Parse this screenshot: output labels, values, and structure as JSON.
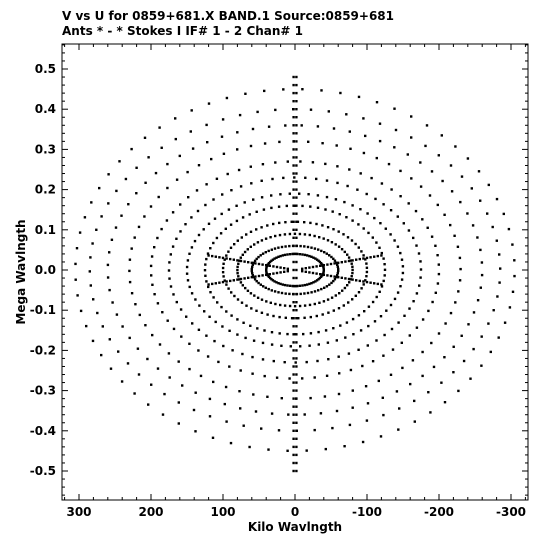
{
  "header": {
    "line1": "V vs U for 0859+681.X BAND.1   Source:0859+681",
    "line2": "Ants * - *     Stokes I  IF# 1 - 2  Chan# 1"
  },
  "colors": {
    "background": "#ffffff",
    "ink": "#000000"
  },
  "chart_data": {
    "type": "scatter",
    "xlabel": "Kilo Wavlngth",
    "ylabel": "Mega Wavlngth",
    "x_units": "kilo-wavelength",
    "y_units": "mega-wavelength",
    "x_axis_reversed": true,
    "xlim": [
      330,
      -330
    ],
    "ylim": [
      -0.57,
      0.57
    ],
    "grid": false,
    "legend": "none",
    "x_ticks": [
      300,
      200,
      100,
      0,
      -100,
      -200,
      -300
    ],
    "x_tick_labels": [
      "300",
      "200",
      "100",
      "0",
      "-100",
      "-200",
      "-300"
    ],
    "y_ticks": [
      0.5,
      0.4,
      0.3,
      0.2,
      0.1,
      0.0,
      -0.1,
      -0.2,
      -0.3,
      -0.4,
      -0.5
    ],
    "y_tick_labels": [
      "0.5",
      "0.4",
      "0.3",
      "0.2",
      "0.1",
      "0.0",
      "-0.1",
      "-0.2",
      "-0.3",
      "-0.4",
      "-0.5"
    ],
    "marker": "small filled square",
    "uv_coverage": {
      "description_of_structure": "concentric elliptical tracks (point-symmetric u,v samples)",
      "track_semi_axes": [
        [
          40,
          0.04
        ],
        [
          60,
          0.06
        ],
        [
          80,
          0.09
        ],
        [
          100,
          0.12
        ],
        [
          125,
          0.16
        ],
        [
          150,
          0.19
        ],
        [
          175,
          0.23
        ],
        [
          200,
          0.27
        ],
        [
          230,
          0.32
        ],
        [
          260,
          0.36
        ],
        [
          285,
          0.4
        ],
        [
          305,
          0.45
        ]
      ],
      "points_per_track": 72
    }
  }
}
